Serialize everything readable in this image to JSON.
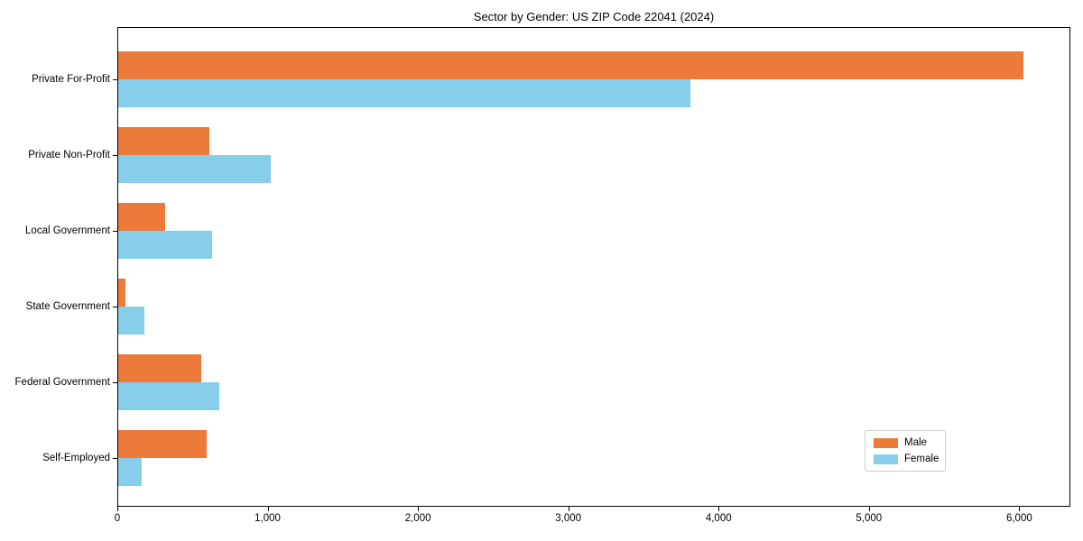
{
  "chart_data": {
    "type": "bar",
    "orientation": "horizontal",
    "title": "Sector by Gender: US ZIP Code 22041 (2024)",
    "categories": [
      "Private For-Profit",
      "Private Non-Profit",
      "Local Government",
      "State Government",
      "Federal Government",
      "Self-Employed"
    ],
    "series": [
      {
        "name": "Male",
        "color": "#eb7a3b",
        "values": [
          6030,
          610,
          320,
          55,
          560,
          595
        ]
      },
      {
        "name": "Female",
        "color": "#87ceeb",
        "values": [
          3810,
          1020,
          630,
          180,
          680,
          160
        ]
      }
    ],
    "xlabel": "",
    "ylabel": "",
    "xlim": [
      0,
      6340
    ],
    "x_ticks": [
      0,
      1000,
      2000,
      3000,
      4000,
      5000,
      6000
    ],
    "x_tick_labels": [
      "0",
      "1,000",
      "2,000",
      "3,000",
      "4,000",
      "5,000",
      "6,000"
    ],
    "grid": false,
    "legend": {
      "position": "lower-right",
      "entries": [
        "Male",
        "Female"
      ]
    },
    "colors": {
      "male": "#eb7a3b",
      "female": "#87ceeb",
      "spine": "#000000",
      "legend_border": "#cccccc"
    }
  }
}
